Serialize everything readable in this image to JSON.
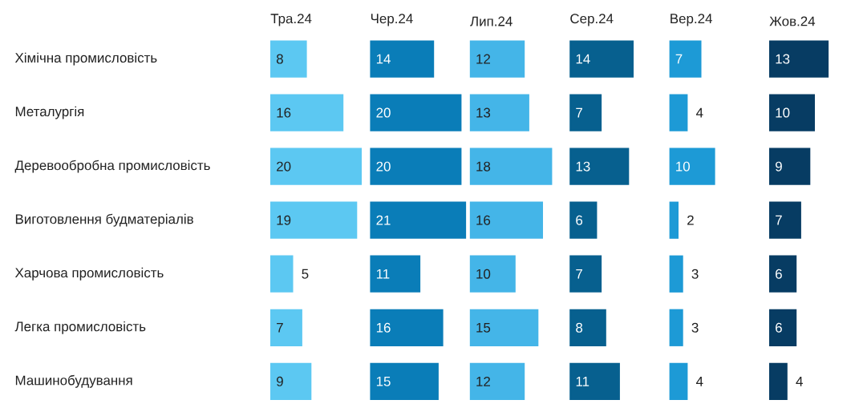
{
  "chart_data": [
    {
      "type": "bar",
      "orientation": "horizontal",
      "title": "Тра.24",
      "categories": [
        "Хімічна промисловість",
        "Металургія",
        "Деревообробна промисловість",
        "Виготовлення будматеріалів",
        "Харчова промисловість",
        "Легка промисловість",
        "Машинобудування"
      ],
      "values": [
        8,
        16,
        20,
        19,
        5,
        7,
        9
      ],
      "color": "#5cc8f2",
      "data_labels": true,
      "tick_labels": "y"
    },
    {
      "type": "bar",
      "orientation": "horizontal",
      "title": "Чер.24",
      "values": [
        14,
        20,
        20,
        21,
        11,
        16,
        15
      ],
      "color": "#0a7db8",
      "data_labels": true,
      "tick_labels": false
    },
    {
      "type": "bar",
      "orientation": "horizontal",
      "title": "Лип.24",
      "values": [
        12,
        13,
        18,
        16,
        10,
        15,
        12
      ],
      "color": "#44b5e8",
      "data_labels": true,
      "tick_labels": false
    },
    {
      "type": "bar",
      "orientation": "horizontal",
      "title": "Сер.24",
      "values": [
        14,
        7,
        13,
        6,
        7,
        8,
        11
      ],
      "color": "#07608f",
      "data_labels": true,
      "tick_labels": false
    },
    {
      "type": "bar",
      "orientation": "horizontal",
      "title": "Вер.24",
      "values": [
        7,
        4,
        10,
        2,
        3,
        3,
        4
      ],
      "color": "#1d9ad6",
      "data_labels": true,
      "tick_labels": false
    },
    {
      "type": "bar",
      "orientation": "horizontal",
      "title": "Жов.24",
      "values": [
        13,
        10,
        9,
        7,
        6,
        6,
        4
      ],
      "color": "#073c63",
      "data_labels": true,
      "tick_labels": false
    }
  ]
}
